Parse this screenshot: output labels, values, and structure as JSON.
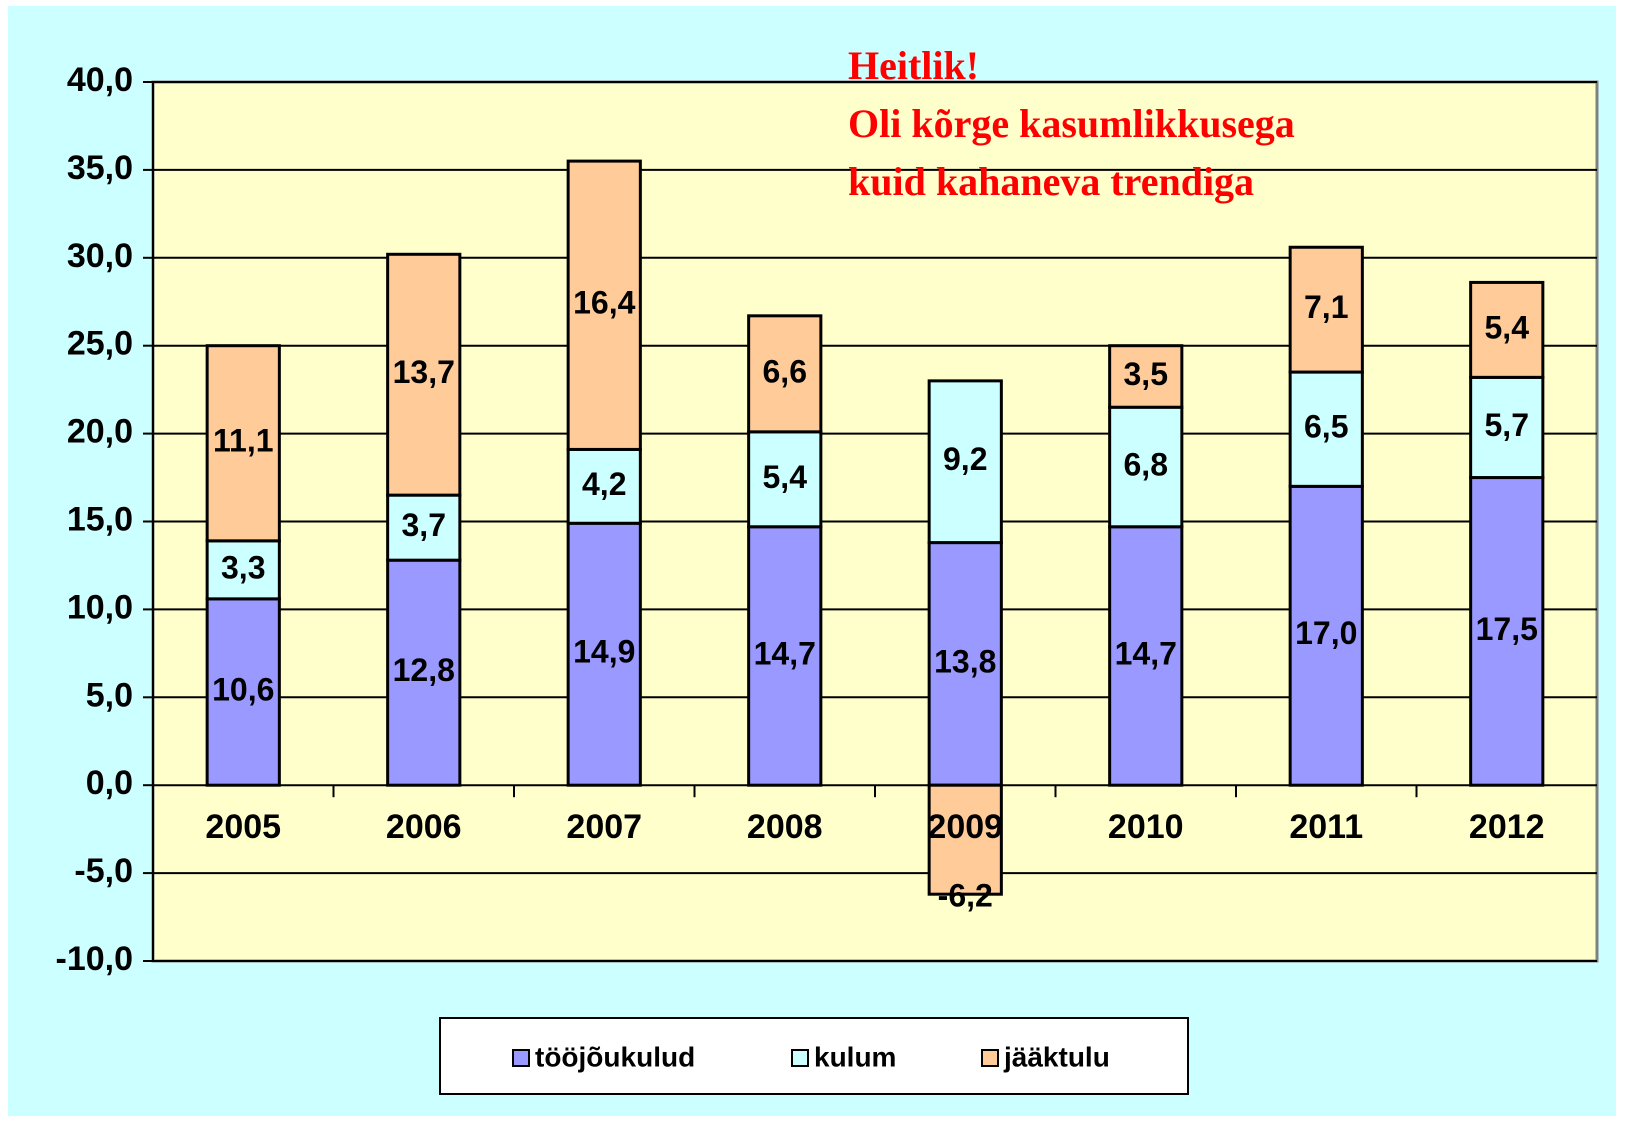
{
  "chart_data": {
    "type": "stacked_bar",
    "annotation": [
      "Heitlik!",
      "Oli kõrge kasumlikkusega",
      "kuid kahaneva trendiga"
    ],
    "categories": [
      "2005",
      "2006",
      "2007",
      "2008",
      "2009",
      "2010",
      "2011",
      "2012"
    ],
    "series": [
      {
        "name": "tööjõukulud",
        "color": "#9999ff",
        "values": [
          10.6,
          12.8,
          14.9,
          14.7,
          13.8,
          14.7,
          17.0,
          17.5
        ],
        "value_labels": [
          "10,6",
          "12,8",
          "14,9",
          "14,7",
          "13,8",
          "14,7",
          "17,0",
          "17,5"
        ]
      },
      {
        "name": "kulum",
        "color": "#ccffff",
        "values": [
          3.3,
          3.7,
          4.2,
          5.4,
          9.2,
          6.8,
          6.5,
          5.7
        ],
        "value_labels": [
          "3,3",
          "3,7",
          "4,2",
          "5,4",
          "9,2",
          "6,8",
          "6,5",
          "5,7"
        ]
      },
      {
        "name": "jääktulu",
        "color": "#ffcc99",
        "values": [
          11.1,
          13.7,
          16.4,
          6.6,
          -6.2,
          3.5,
          7.1,
          5.4
        ],
        "value_labels": [
          "11,1",
          "13,7",
          "16,4",
          "6,6",
          "-6,2",
          "3,5",
          "7,1",
          "5,4"
        ]
      }
    ],
    "ylim": [
      -10,
      40
    ],
    "yticks": [
      {
        "value": -10,
        "label": "-10,0"
      },
      {
        "value": -5,
        "label": "-5,0"
      },
      {
        "value": 0,
        "label": "0,0"
      },
      {
        "value": 5,
        "label": "5,0"
      },
      {
        "value": 10,
        "label": "10,0"
      },
      {
        "value": 15,
        "label": "15,0"
      },
      {
        "value": 20,
        "label": "20,0"
      },
      {
        "value": 25,
        "label": "25,0"
      },
      {
        "value": 30,
        "label": "30,0"
      },
      {
        "value": 35,
        "label": "35,0"
      },
      {
        "value": 40,
        "label": "40,0"
      }
    ],
    "grid": true,
    "legend": "bottom"
  }
}
